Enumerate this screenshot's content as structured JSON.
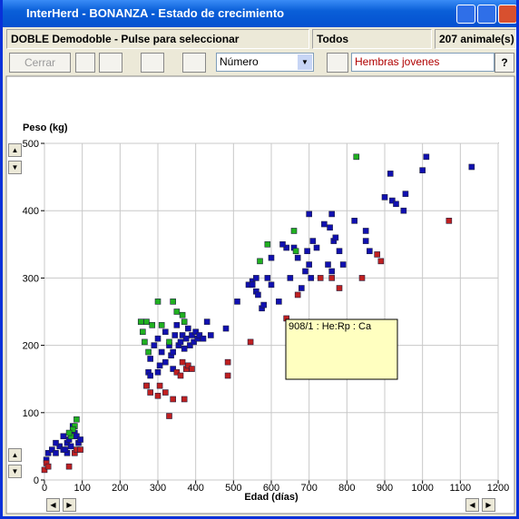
{
  "window": {
    "title": "InterHerd - BONANZA - Estado de crecimiento"
  },
  "status_bar": {
    "selection": "DOBLE Demodoble - Pulse para seleccionar",
    "filter": "Todos",
    "count": "207 animale(s)"
  },
  "toolbar": {
    "close_button": "Cerrar",
    "sort_select": "Número",
    "filter_field": "Hembras jovenes"
  },
  "tooltip": {
    "text": "908/1 : He:Rp : Ca"
  },
  "chart_data": {
    "type": "scatter",
    "y_label": "Peso (kg)",
    "x_label": "Edad (días)",
    "xlim": [
      0,
      1200
    ],
    "ylim": [
      0,
      500
    ],
    "xticks": [
      0,
      100,
      200,
      300,
      400,
      500,
      600,
      700,
      800,
      900,
      1000,
      1100,
      1200
    ],
    "yticks": [
      0,
      100,
      200,
      300,
      400,
      500
    ],
    "grid": true,
    "series": [
      {
        "color": "#1010b0",
        "x": [
          5,
          10,
          20,
          30,
          40,
          50,
          60,
          65,
          70,
          80,
          85,
          90,
          95,
          75,
          60,
          30,
          50,
          55,
          270,
          275,
          280,
          290,
          300,
          305,
          310,
          320,
          330,
          335,
          340,
          345,
          350,
          355,
          360,
          365,
          370,
          375,
          380,
          385,
          390,
          395,
          400,
          405,
          410,
          420,
          430,
          440,
          480,
          300,
          320,
          340,
          280,
          510,
          540,
          550,
          560,
          560,
          565,
          575,
          580,
          590,
          600,
          620,
          640,
          650,
          660,
          670,
          680,
          690,
          695,
          700,
          705,
          710,
          720,
          740,
          750,
          755,
          760,
          765,
          770,
          780,
          790,
          820,
          850,
          860,
          900,
          915,
          920,
          930,
          950,
          955,
          1000,
          1010,
          1130,
          700,
          760,
          850,
          630,
          550,
          600
        ],
        "values": [
          30,
          40,
          45,
          40,
          50,
          45,
          55,
          60,
          50,
          70,
          65,
          55,
          60,
          80,
          40,
          55,
          65,
          45,
          140,
          160,
          180,
          200,
          210,
          170,
          190,
          220,
          200,
          185,
          190,
          215,
          230,
          200,
          205,
          215,
          195,
          210,
          225,
          200,
          215,
          205,
          220,
          210,
          215,
          210,
          235,
          215,
          225,
          160,
          175,
          165,
          155,
          265,
          290,
          295,
          300,
          280,
          275,
          255,
          260,
          300,
          330,
          265,
          345,
          300,
          345,
          330,
          285,
          310,
          340,
          320,
          300,
          355,
          345,
          380,
          320,
          375,
          310,
          355,
          360,
          340,
          320,
          385,
          370,
          340,
          420,
          455,
          415,
          410,
          400,
          425,
          460,
          480,
          465,
          395,
          395,
          355,
          350,
          290,
          290
        ]
      },
      {
        "color": "#20b020",
        "x": [
          85,
          80,
          75,
          70,
          65,
          255,
          260,
          265,
          270,
          275,
          285,
          300,
          310,
          330,
          340,
          350,
          365,
          370,
          570,
          590,
          660,
          665,
          825
        ],
        "values": [
          90,
          80,
          75,
          65,
          70,
          235,
          220,
          205,
          235,
          190,
          230,
          265,
          230,
          205,
          265,
          250,
          245,
          235,
          325,
          350,
          370,
          340,
          480
        ]
      },
      {
        "color": "#c02020",
        "x": [
          0,
          5,
          10,
          65,
          80,
          85,
          95,
          270,
          280,
          300,
          305,
          320,
          330,
          340,
          350,
          360,
          365,
          370,
          375,
          380,
          390,
          485,
          485,
          545,
          640,
          670,
          730,
          760,
          780,
          840,
          880,
          890,
          1070
        ],
        "values": [
          15,
          25,
          20,
          20,
          40,
          45,
          45,
          140,
          130,
          125,
          140,
          130,
          95,
          120,
          160,
          155,
          175,
          120,
          165,
          170,
          165,
          175,
          155,
          205,
          240,
          275,
          300,
          300,
          285,
          300,
          335,
          325,
          385
        ]
      }
    ]
  }
}
